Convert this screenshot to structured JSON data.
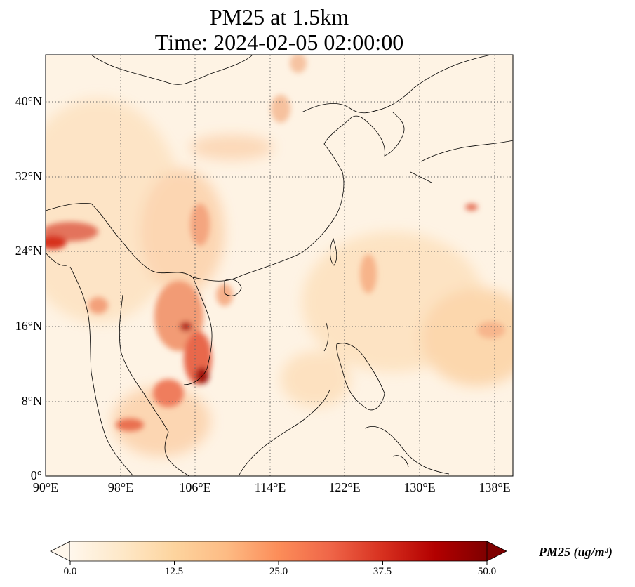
{
  "title": {
    "line1": "PM25 at 1.5km",
    "line2": "Time: 2024-02-05 02:00:00"
  },
  "map": {
    "variable": "PM25",
    "level": "1.5km",
    "lon_range": [
      90,
      141
    ],
    "lat_range": [
      0,
      45
    ],
    "lat_ticks": [
      {
        "value": 0,
        "label": "0°"
      },
      {
        "value": 8,
        "label": "8°N"
      },
      {
        "value": 16,
        "label": "16°N"
      },
      {
        "value": 24,
        "label": "24°N"
      },
      {
        "value": 32,
        "label": "32°N"
      },
      {
        "value": 40,
        "label": "40°N"
      }
    ],
    "lon_ticks": [
      {
        "value": 90,
        "label": "90°E"
      },
      {
        "value": 98,
        "label": "98°E"
      },
      {
        "value": 106,
        "label": "106°E"
      },
      {
        "value": 114,
        "label": "114°E"
      },
      {
        "value": 122,
        "label": "122°E"
      },
      {
        "value": 130,
        "label": "130°E"
      },
      {
        "value": 138,
        "label": "138°E"
      }
    ],
    "gridlines": true,
    "colormap": "OrRd"
  },
  "colorbar": {
    "ticks": [
      "0.0",
      "12.5",
      "25.0",
      "37.5",
      "50.0"
    ],
    "min": 0,
    "max": 50,
    "extend": "both",
    "label": "PM25 (ug/m³)",
    "colors": [
      "#fff7ec",
      "#fee8c8",
      "#fdd49e",
      "#fdbb84",
      "#fc8d59",
      "#ef6548",
      "#d7301f",
      "#b30000",
      "#7f0000"
    ]
  }
}
